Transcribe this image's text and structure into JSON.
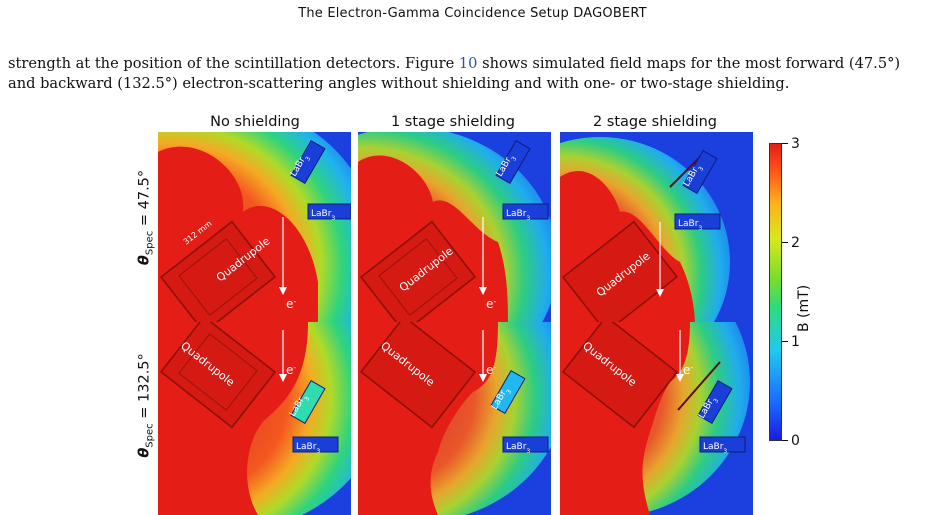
{
  "header": {
    "running_title": "The Electron-Gamma Coincidence Setup DAGOBERT"
  },
  "body": {
    "line1_before": "strength at the position of the scintillation detectors. Figure ",
    "fig_ref": "10",
    "line1_after": " shows simulated field maps for the most forward (47.5°)",
    "line2": "and backward (132.5°) electron-scattering angles without shielding and with one- or two-stage shielding."
  },
  "figure": {
    "column_titles": [
      "No shielding",
      "1 stage shielding",
      "2 stage shielding"
    ],
    "row_labels": [
      {
        "symbol": "θ",
        "subscript": "Spec",
        "value": " = 47.5°"
      },
      {
        "symbol": "θ",
        "subscript": "Spec",
        "value": " = 132.5°"
      }
    ],
    "labels": {
      "quadrupole": "Quadrupole",
      "detector": "LaBr",
      "detector_sub": "3",
      "electron": "e",
      "electron_sup": "-",
      "dimension": "312 mm"
    },
    "colorbar": {
      "title": "B (mT)",
      "ticks": [
        "0",
        "1",
        "2",
        "3"
      ],
      "range": [
        0,
        3
      ],
      "colors": [
        "#1c1ae0",
        "#20c8f0",
        "#7ade2a",
        "#ffb01a",
        "#e41e16"
      ]
    }
  }
}
